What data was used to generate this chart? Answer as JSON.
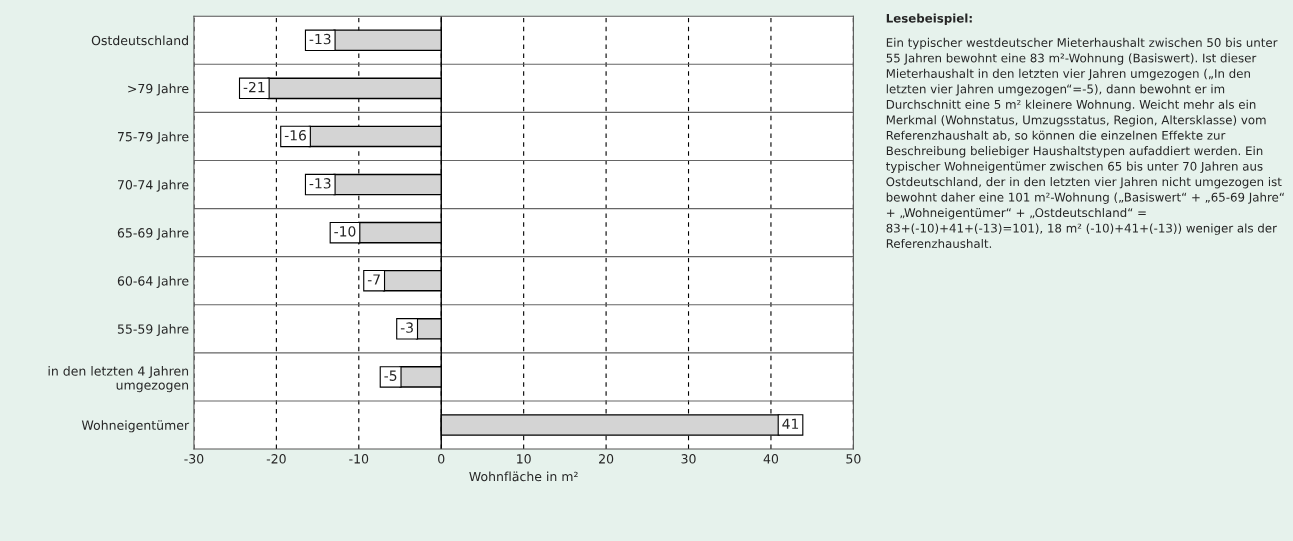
{
  "chart_data": {
    "type": "bar",
    "orientation": "horizontal",
    "categories": [
      "Ostdeutschland",
      ">79 Jahre",
      "75-79 Jahre",
      "70-74 Jahre",
      "65-69 Jahre",
      "60-64 Jahre",
      "55-59 Jahre",
      "in den letzten 4 Jahren\numgezogen",
      "Wohneigentümer"
    ],
    "values": [
      -13,
      -21,
      -16,
      -13,
      -10,
      -7,
      -3,
      -5,
      41
    ],
    "color": "#d4d4d4",
    "xlabel": "Wohnfläche in m²",
    "xlim": [
      -30,
      50
    ],
    "xticks": [
      -30,
      -20,
      -10,
      0,
      10,
      20,
      30,
      40,
      50
    ],
    "grid": true,
    "data_labels": true,
    "annotations": [
      "Lesebeispiel:",
      "Ein typischer westdeutscher Mieterhaushalt zwischen 50 bis unter 55 Jahren bewohnt eine 83 m²-Wohnung (Basiswert). Ist dieser Mieterhaushalt in den letzten vier Jahren umgezogen („In den letzten vier Jahren umgezogen“=-5), dann bewohnt er im Durchschnitt eine 5 m² kleinere Wohnung. Weicht mehr als ein Merkmal (Wohnstatus, Umzugsstatus, Region, Altersklasse) vom Referenzhaushalt ab, so können die einzelnen Effekte zur Beschreibung beliebiger Haushaltstypen aufaddiert werden. Ein typischer Wohneigentümer zwischen 65 bis unter 70 Jahren aus Ostdeutschland, der in den letzten vier Jahren nicht umgezogen ist bewohnt daher eine 101 m²-Wohnung („Basiswert“ + „65-69 Jahre“ + „Wohneigentümer“ + „Ostdeutschland“ = 83+(-10)+41+(-13)=101), 18 m² (-10)+41+(-13)) weniger als der Referenzhaushalt."
    ]
  }
}
